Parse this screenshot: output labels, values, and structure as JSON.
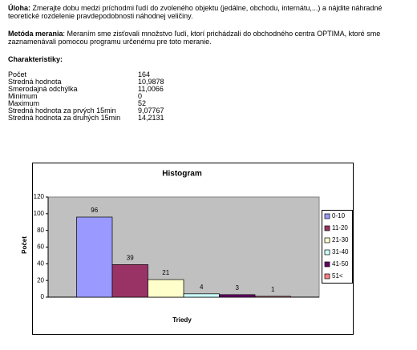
{
  "task": {
    "label": "Úloha:",
    "text": " Zmerajte dobu medzi príchodmi ľudí do zvoleného objektu (jedálne, obchodu, internátu,...) a nájdite náhradné teoretické rozdelenie pravdepodobnosti náhodnej veličiny."
  },
  "method": {
    "label": "Metóda merania",
    "text": ": Meraním sme zisťovali množstvo ľudí, ktorí prichádzali do obchodného centra OPTIMA, ktoré sme zaznamenávali pomocou programu určenému pre toto meranie."
  },
  "stats": {
    "title": "Charakteristiky:",
    "rows": [
      [
        "Počet",
        "164"
      ],
      [
        "Stredná hodnota",
        "10,9878"
      ],
      [
        "Smerodajná odchýlka",
        "11,0066"
      ],
      [
        "Minimum",
        "0"
      ],
      [
        "Maximum",
        "52"
      ],
      [
        "Stredná hodnota za prvých 15min",
        "9,07767"
      ],
      [
        "Stredná hodnota za druhých 15min",
        "14,2131"
      ]
    ]
  },
  "chart_data": {
    "type": "bar",
    "title": "Histogram",
    "x_label": "Triedy",
    "y_label": "Počet",
    "categories": [
      null
    ],
    "series": [
      {
        "name": "0-10",
        "color": "#9999ff",
        "values": [
          96
        ]
      },
      {
        "name": "11-20",
        "color": "#993366",
        "values": [
          39
        ]
      },
      {
        "name": "21-30",
        "color": "#ffffcc",
        "values": [
          21
        ]
      },
      {
        "name": "31-40",
        "color": "#ccffff",
        "values": [
          4
        ]
      },
      {
        "name": "41-50",
        "color": "#660066",
        "values": [
          3
        ]
      },
      {
        "name": "51<",
        "color": "#ff8080",
        "values": [
          1
        ]
      }
    ],
    "ylim": [
      0,
      120
    ],
    "yticks": [
      0,
      20,
      40,
      60,
      80,
      100,
      120
    ],
    "grid": false,
    "legend": "right",
    "plot_background": "#c0c0c0"
  }
}
